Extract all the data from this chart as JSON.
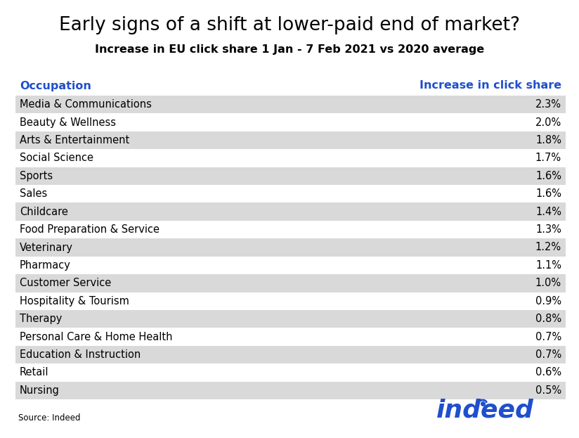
{
  "title": "Early signs of a shift at lower-paid end of market?",
  "subtitle": "Increase in EU click share 1 Jan - 7 Feb 2021 vs 2020 average",
  "col1_header": "Occupation",
  "col2_header": "Increase in click share",
  "header_color": "#1F4FCC",
  "rows": [
    [
      "Media & Communications",
      "2.3%"
    ],
    [
      "Beauty & Wellness",
      "2.0%"
    ],
    [
      "Arts & Entertainment",
      "1.8%"
    ],
    [
      "Social Science",
      "1.7%"
    ],
    [
      "Sports",
      "1.6%"
    ],
    [
      "Sales",
      "1.6%"
    ],
    [
      "Childcare",
      "1.4%"
    ],
    [
      "Food Preparation & Service",
      "1.3%"
    ],
    [
      "Veterinary",
      "1.2%"
    ],
    [
      "Pharmacy",
      "1.1%"
    ],
    [
      "Customer Service",
      "1.0%"
    ],
    [
      "Hospitality & Tourism",
      "0.9%"
    ],
    [
      "Therapy",
      "0.8%"
    ],
    [
      "Personal Care & Home Health",
      "0.7%"
    ],
    [
      "Education & Instruction",
      "0.7%"
    ],
    [
      "Retail",
      "0.6%"
    ],
    [
      "Nursing",
      "0.5%"
    ]
  ],
  "shaded_rows": [
    0,
    2,
    4,
    6,
    8,
    10,
    12,
    14,
    16
  ],
  "shaded_color": "#D9D9D9",
  "white_color": "#FFFFFF",
  "text_color": "#000000",
  "source_text": "Source: Indeed",
  "bg_color": "#FFFFFF",
  "title_fontsize": 19,
  "subtitle_fontsize": 11.5,
  "row_fontsize": 10.5,
  "header_fontsize": 11.5,
  "source_fontsize": 8.5,
  "indeed_color": "#1F4FCC",
  "indeed_logo_fontsize": 26
}
